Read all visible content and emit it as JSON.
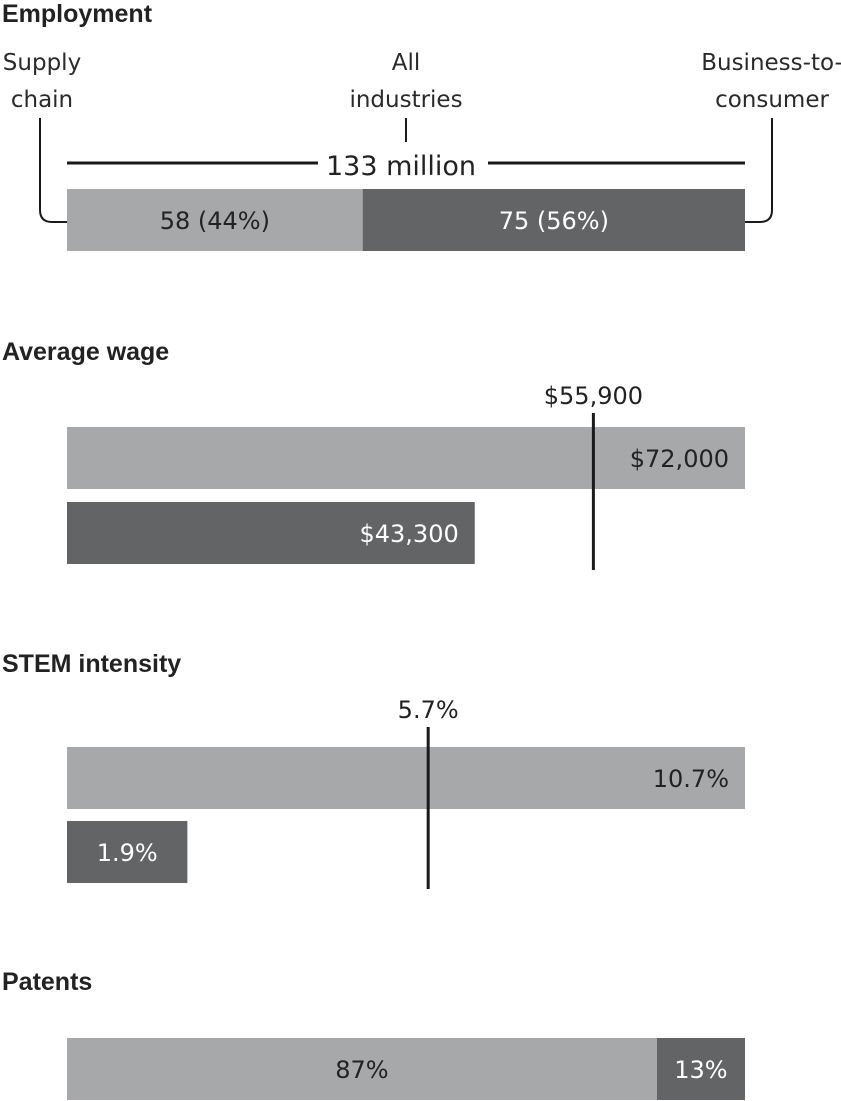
{
  "chart_data": [
    {
      "type": "bar",
      "title": "Employment",
      "orientation": "stacked-horizontal",
      "categories_labels": {
        "supply_chain": "Supply chain",
        "all": "All industries",
        "b2c": "Business-to-consumer"
      },
      "label_lines": {
        "supply_chain": [
          "Supply",
          "chain"
        ],
        "all": [
          "All",
          "industries"
        ],
        "b2c": [
          "Business-to-",
          "consumer"
        ]
      },
      "total_label": "133 million",
      "total": 133,
      "values": [
        58,
        75
      ],
      "value_labels": [
        "58 (44%)",
        "75 (56%)"
      ]
    },
    {
      "type": "bar",
      "title": "Average wage",
      "orientation": "horizontal",
      "values": [
        72000,
        43300
      ],
      "value_labels": [
        "$72,000",
        "$43,300"
      ],
      "reference": 55900,
      "reference_label": "$55,900",
      "xlim": [
        0,
        72000
      ]
    },
    {
      "type": "bar",
      "title": "STEM intensity",
      "orientation": "horizontal",
      "values": [
        10.7,
        1.9
      ],
      "value_labels": [
        "10.7%",
        "1.9%"
      ],
      "reference": 5.7,
      "reference_label": "5.7%",
      "xlim": [
        0,
        10.7
      ]
    },
    {
      "type": "bar",
      "title": "Patents",
      "orientation": "stacked-horizontal",
      "values": [
        87,
        13
      ],
      "value_labels": [
        "87%",
        "13%"
      ]
    }
  ],
  "colors": {
    "supply_chain": "#a7a8aa",
    "b2c": "#636466",
    "text": "#222222",
    "line": "#1a1a1a"
  }
}
